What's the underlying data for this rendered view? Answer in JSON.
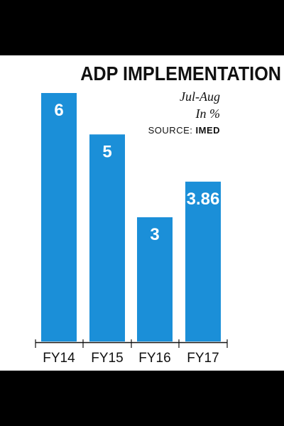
{
  "header": {
    "title": "ADP IMPLEMENTATION",
    "period": "Jul-Aug",
    "unit": "In %",
    "source_label": "SOURCE:",
    "source_name": "IMED"
  },
  "colors": {
    "bar": "#1b8fd8",
    "label": "#ffffff",
    "axis": "#111111",
    "background": "#ffffff"
  },
  "chart_data": {
    "type": "bar",
    "title": "ADP IMPLEMENTATION",
    "subtitle": "Jul-Aug",
    "ylabel": "In %",
    "categories": [
      "FY14",
      "FY15",
      "FY16",
      "FY17"
    ],
    "values": [
      6,
      5,
      3,
      3.86
    ],
    "value_labels": [
      "6",
      "5",
      "3",
      "3.86"
    ],
    "ylim": [
      0,
      6
    ],
    "grid": false,
    "legend": "none"
  }
}
